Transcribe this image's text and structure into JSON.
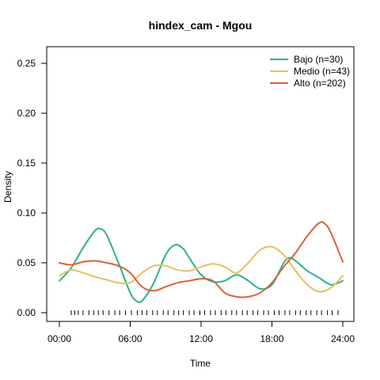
{
  "chart_data": {
    "type": "line",
    "title": "hindex_cam - Mgou",
    "xlabel": "Time",
    "ylabel": "Density",
    "xlim": [
      0,
      24
    ],
    "ylim": [
      0,
      0.25
    ],
    "x_ticks": [
      0,
      6,
      12,
      18,
      24
    ],
    "x_tick_labels": [
      "00:00",
      "06:00",
      "12:00",
      "18:00",
      "24:00"
    ],
    "y_ticks": [
      0,
      0.05,
      0.1,
      0.15,
      0.2,
      0.25
    ],
    "y_tick_labels": [
      "0.00",
      "0.05",
      "0.10",
      "0.15",
      "0.20",
      "0.25"
    ],
    "legend_position": "top-right",
    "series": [
      {
        "name": "Bajo (n=30)",
        "color": "#2bb08c",
        "x": [
          0,
          1,
          2,
          3,
          3.5,
          4,
          5,
          6,
          6.5,
          7,
          8,
          9,
          9.8,
          10.5,
          11,
          12,
          13,
          14,
          15,
          16,
          17,
          18,
          19,
          19.5,
          20,
          21,
          22,
          23,
          24
        ],
        "y": [
          0.032,
          0.045,
          0.065,
          0.082,
          0.084,
          0.078,
          0.05,
          0.02,
          0.012,
          0.012,
          0.03,
          0.058,
          0.068,
          0.064,
          0.055,
          0.038,
          0.031,
          0.032,
          0.038,
          0.032,
          0.024,
          0.028,
          0.05,
          0.055,
          0.052,
          0.042,
          0.035,
          0.028,
          0.032
        ]
      },
      {
        "name": "Medio (n=43)",
        "color": "#e6c060",
        "x": [
          0,
          1,
          2,
          3,
          4,
          5,
          6,
          7,
          8,
          9,
          10,
          11,
          12,
          13,
          14,
          15,
          16,
          17,
          18,
          19,
          20,
          21,
          22,
          23,
          24
        ],
        "y": [
          0.037,
          0.043,
          0.04,
          0.036,
          0.033,
          0.03,
          0.03,
          0.04,
          0.047,
          0.047,
          0.043,
          0.042,
          0.046,
          0.049,
          0.046,
          0.04,
          0.05,
          0.063,
          0.066,
          0.058,
          0.042,
          0.028,
          0.021,
          0.025,
          0.037
        ]
      },
      {
        "name": "Alto (n=202)",
        "color": "#d95f3e",
        "x": [
          0,
          1,
          2,
          3,
          4,
          5,
          6,
          7,
          8,
          9,
          10,
          11,
          12,
          13,
          14,
          15,
          16,
          17,
          18,
          19,
          20,
          21,
          22,
          22.5,
          23,
          24
        ],
        "y": [
          0.05,
          0.048,
          0.051,
          0.052,
          0.05,
          0.047,
          0.04,
          0.026,
          0.022,
          0.026,
          0.03,
          0.032,
          0.034,
          0.032,
          0.02,
          0.016,
          0.016,
          0.02,
          0.03,
          0.046,
          0.06,
          0.077,
          0.09,
          0.089,
          0.08,
          0.051
        ]
      }
    ],
    "rug": {
      "color": "#000000",
      "x": [
        1.0,
        1.3,
        1.6,
        2.0,
        2.5,
        2.9,
        3.3,
        3.7,
        4.2,
        4.7,
        5.1,
        5.6,
        6.1,
        6.6,
        7.0,
        7.4,
        7.9,
        8.3,
        8.8,
        9.2,
        9.7,
        10.1,
        10.5,
        11.0,
        11.4,
        11.9,
        12.3,
        12.8,
        13.2,
        13.7,
        14.1,
        14.6,
        15.0,
        15.5,
        15.9,
        16.4,
        16.8,
        17.3,
        17.7,
        18.2,
        18.6,
        19.1,
        19.5,
        20.0,
        20.4,
        20.9,
        21.3,
        21.8,
        22.2,
        22.7,
        23.1,
        23.6
      ]
    }
  }
}
